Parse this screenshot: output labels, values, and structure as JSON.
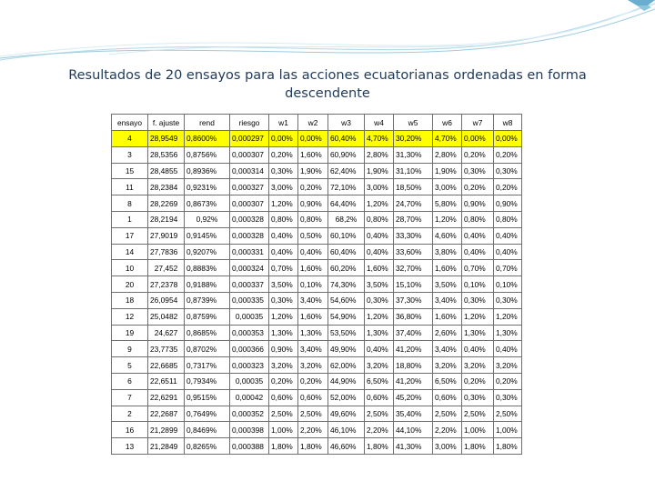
{
  "slide": {
    "title": "Resultados de 20 ensayos para las acciones ecuatorianas ordenadas en forma descendente"
  },
  "colors": {
    "highlight": "#ffff00",
    "title": "#1f3a5a",
    "accent": "#5aa5c8"
  },
  "table": {
    "headers": [
      "ensayo",
      "f. ajuste",
      "rend",
      "riesgo",
      "w1",
      "w2",
      "w3",
      "w4",
      "w5",
      "w6",
      "w7",
      "w8"
    ],
    "rows": [
      [
        "4",
        "28,9549",
        "0,8600%",
        "0,000297",
        "0,00%",
        "0,00%",
        "60,40%",
        "4,70%",
        "30,20%",
        "4,70%",
        "0,00%",
        "0,00%"
      ],
      [
        "3",
        "28,5356",
        "0,8756%",
        "0,000307",
        "0,20%",
        "1,60%",
        "60,90%",
        "2,80%",
        "31,30%",
        "2,80%",
        "0,20%",
        "0,20%"
      ],
      [
        "15",
        "28,4855",
        "0,8936%",
        "0,000314",
        "0,30%",
        "1,90%",
        "62,40%",
        "1,90%",
        "31,10%",
        "1,90%",
        "0,30%",
        "0,30%"
      ],
      [
        "11",
        "28,2384",
        "0,9231%",
        "0,000327",
        "3,00%",
        "0,20%",
        "72,10%",
        "3,00%",
        "18,50%",
        "3,00%",
        "0,20%",
        "0,20%"
      ],
      [
        "8",
        "28,2269",
        "0,8673%",
        "0,000307",
        "1,20%",
        "0,90%",
        "64,40%",
        "1,20%",
        "24,70%",
        "5,80%",
        "0,90%",
        "0,90%"
      ],
      [
        "1",
        "28,2194",
        "0,92%",
        "0,000328",
        "0,80%",
        "0,80%",
        "68,2%",
        "0,80%",
        "28,70%",
        "1,20%",
        "0,80%",
        "0,80%"
      ],
      [
        "17",
        "27,9019",
        "0,9145%",
        "0,000328",
        "0,40%",
        "0,50%",
        "60,10%",
        "0,40%",
        "33,30%",
        "4,60%",
        "0,40%",
        "0,40%"
      ],
      [
        "14",
        "27,7836",
        "0,9207%",
        "0,000331",
        "0,40%",
        "0,40%",
        "60,40%",
        "0,40%",
        "33,60%",
        "3,80%",
        "0,40%",
        "0,40%"
      ],
      [
        "10",
        "27,452",
        "0,8883%",
        "0,000324",
        "0,70%",
        "1,60%",
        "60,20%",
        "1,60%",
        "32,70%",
        "1,60%",
        "0,70%",
        "0,70%"
      ],
      [
        "20",
        "27,2378",
        "0,9188%",
        "0,000337",
        "3,50%",
        "0,10%",
        "74,30%",
        "3,50%",
        "15,10%",
        "3,50%",
        "0,10%",
        "0,10%"
      ],
      [
        "18",
        "26,0954",
        "0,8739%",
        "0,000335",
        "0,30%",
        "3,40%",
        "54,60%",
        "0,30%",
        "37,30%",
        "3,40%",
        "0,30%",
        "0,30%"
      ],
      [
        "12",
        "25,0482",
        "0,8759%",
        "0,00035",
        "1,20%",
        "1,60%",
        "54,90%",
        "1,20%",
        "36,80%",
        "1,60%",
        "1,20%",
        "1,20%"
      ],
      [
        "19",
        "24,627",
        "0,8685%",
        "0,000353",
        "1,30%",
        "1,30%",
        "53,50%",
        "1,30%",
        "37,40%",
        "2,60%",
        "1,30%",
        "1,30%"
      ],
      [
        "9",
        "23,7735",
        "0,8702%",
        "0,000366",
        "0,90%",
        "3,40%",
        "49,90%",
        "0,40%",
        "41,20%",
        "3,40%",
        "0,40%",
        "0,40%"
      ],
      [
        "5",
        "22,6685",
        "0,7317%",
        "0,000323",
        "3,20%",
        "3,20%",
        "62,00%",
        "3,20%",
        "18,80%",
        "3,20%",
        "3,20%",
        "3,20%"
      ],
      [
        "6",
        "22,6511",
        "0,7934%",
        "0,00035",
        "0,20%",
        "0,20%",
        "44,90%",
        "6,50%",
        "41,20%",
        "6,50%",
        "0,20%",
        "0,20%"
      ],
      [
        "7",
        "22,6291",
        "0,9515%",
        "0,00042",
        "0,60%",
        "0,60%",
        "52,00%",
        "0,60%",
        "45,20%",
        "0,60%",
        "0,30%",
        "0,30%"
      ],
      [
        "2",
        "22,2687",
        "0,7649%",
        "0,000352",
        "2,50%",
        "2,50%",
        "49,60%",
        "2,50%",
        "35,40%",
        "2,50%",
        "2,50%",
        "2,50%"
      ],
      [
        "16",
        "21,2899",
        "0,8469%",
        "0,000398",
        "1,00%",
        "2,20%",
        "46,10%",
        "2,20%",
        "44,10%",
        "2,20%",
        "1,00%",
        "1,00%"
      ],
      [
        "13",
        "21,2849",
        "0,8265%",
        "0,000388",
        "1,80%",
        "1,80%",
        "46,60%",
        "1,80%",
        "41,30%",
        "3,00%",
        "1,80%",
        "1,80%"
      ]
    ]
  }
}
